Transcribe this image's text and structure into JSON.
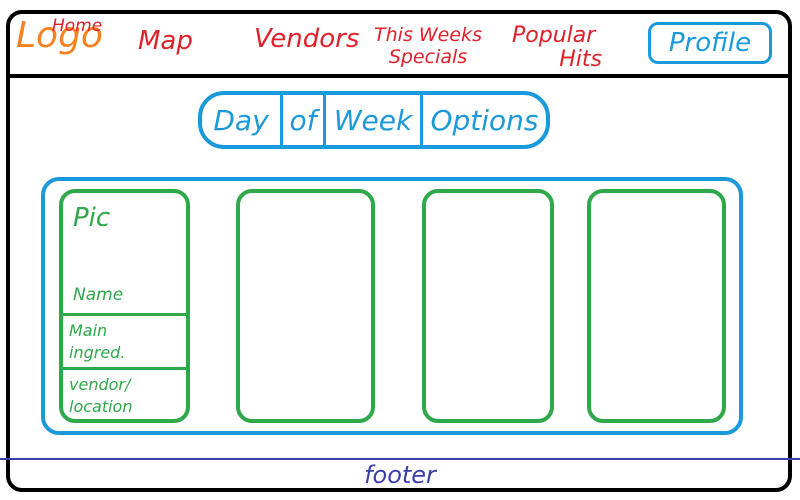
{
  "header": {
    "logo": "Logo",
    "home": "Home",
    "nav": {
      "map": "Map",
      "vendors": "Vendors",
      "specials_line1": "This Weeks",
      "specials_line2": "Specials",
      "popular_line1": "Popular",
      "popular_line2": "Hits"
    },
    "profile": "Profile"
  },
  "day_of_week": {
    "segments": [
      "Day",
      "of",
      "Week",
      "Options"
    ]
  },
  "cards": {
    "pic": "Pic",
    "name": "Name",
    "main_ingred": "Main\ningred.",
    "vendor_location": "vendor/\nlocation"
  },
  "footer": {
    "text": "footer"
  },
  "colors": {
    "logo": "#f58220",
    "nav": "#e0202a",
    "accent_blue": "#1a9ad9",
    "card_green": "#2ea84a",
    "footer_indigo": "#3a3ea8",
    "frame": "#000000"
  }
}
